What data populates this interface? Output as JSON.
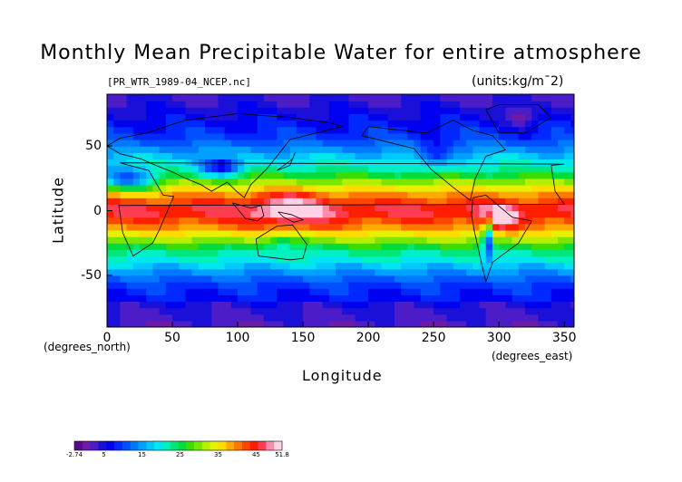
{
  "chart_data": {
    "type": "heatmap",
    "title": "Monthly Mean Precipitable Water for entire atmosphere",
    "subtitle": "[PR_WTR_1989-04_NCEP.nc]",
    "units": "(units:kg/m¯2)",
    "xlabel": "Longitude",
    "ylabel": "Latitude",
    "x_units_label": "(degrees_east)",
    "y_units_label": "(degrees_north)",
    "xlim": [
      0,
      357.5
    ],
    "ylim": [
      -90,
      90
    ],
    "x_ticks": [
      0,
      50,
      100,
      150,
      200,
      250,
      300,
      350
    ],
    "y_ticks": [
      50,
      0,
      -50
    ],
    "colorbar": {
      "min": -2.74,
      "max": 51.8,
      "tick_labels": [
        "-2.74",
        "5",
        "15",
        "25",
        "35",
        "45",
        "51.8"
      ],
      "tick_values": [
        -2.74,
        5,
        15,
        25,
        35,
        45,
        51.8
      ],
      "colors": [
        "#5a0a8c",
        "#6e1aa8",
        "#4b1cc8",
        "#1a10d8",
        "#0000f0",
        "#0028ff",
        "#0050ff",
        "#0078ff",
        "#00a0ff",
        "#00c8ff",
        "#00e6f0",
        "#00f0c0",
        "#00e678",
        "#00dc3c",
        "#3cdc00",
        "#78e600",
        "#b4f000",
        "#e6f000",
        "#ffdc00",
        "#ffaa00",
        "#ff7800",
        "#ff4600",
        "#ff1e00",
        "#ff3c50",
        "#ff8caa",
        "#ffd2e6"
      ]
    },
    "grid": false
  }
}
